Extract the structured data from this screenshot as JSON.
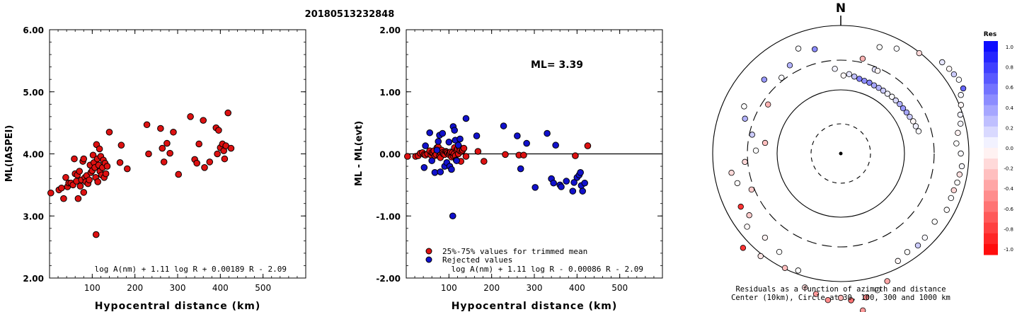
{
  "header": {
    "event_id": "20180513232848"
  },
  "chart_data": [
    {
      "type": "scatter",
      "xlabel": "Hypocentral distance (km)",
      "ylabel": "ML(IASPEI)",
      "xlim": [
        0,
        600
      ],
      "ylim": [
        2.0,
        6.0
      ],
      "x_ticks": [
        "100",
        "200",
        "300",
        "400",
        "500"
      ],
      "y_ticks": [
        "2.00",
        "3.00",
        "4.00",
        "5.00",
        "6.00"
      ],
      "formula": "log A(nm) + 1.11 log R + 0.00189 R - 2.09",
      "colors": {
        "point": "#dd1111"
      },
      "points": [
        [
          3,
          3.37
        ],
        [
          22,
          3.42
        ],
        [
          28,
          3.45
        ],
        [
          33,
          3.28
        ],
        [
          38,
          3.62
        ],
        [
          42,
          3.47
        ],
        [
          45,
          3.53
        ],
        [
          50,
          3.53
        ],
        [
          55,
          3.5
        ],
        [
          58,
          3.92
        ],
        [
          60,
          3.68
        ],
        [
          63,
          3.56
        ],
        [
          65,
          3.66
        ],
        [
          67,
          3.28
        ],
        [
          70,
          3.72
        ],
        [
          72,
          3.48
        ],
        [
          75,
          3.58
        ],
        [
          78,
          3.88
        ],
        [
          80,
          3.92
        ],
        [
          80,
          3.38
        ],
        [
          83,
          3.62
        ],
        [
          85,
          3.55
        ],
        [
          87,
          3.65
        ],
        [
          90,
          3.52
        ],
        [
          93,
          3.58
        ],
        [
          95,
          3.82
        ],
        [
          97,
          3.7
        ],
        [
          100,
          3.73
        ],
        [
          102,
          3.98
        ],
        [
          104,
          3.86
        ],
        [
          106,
          3.78
        ],
        [
          108,
          3.62
        ],
        [
          109,
          2.7
        ],
        [
          110,
          4.15
        ],
        [
          112,
          3.92
        ],
        [
          113,
          3.55
        ],
        [
          115,
          3.82
        ],
        [
          117,
          4.08
        ],
        [
          118,
          3.72
        ],
        [
          120,
          3.96
        ],
        [
          122,
          3.66
        ],
        [
          124,
          3.78
        ],
        [
          126,
          3.9
        ],
        [
          128,
          3.62
        ],
        [
          130,
          3.85
        ],
        [
          132,
          3.68
        ],
        [
          135,
          3.8
        ],
        [
          140,
          4.35
        ],
        [
          165,
          3.86
        ],
        [
          168,
          4.14
        ],
        [
          182,
          3.76
        ],
        [
          228,
          4.47
        ],
        [
          232,
          4.0
        ],
        [
          260,
          4.41
        ],
        [
          264,
          4.09
        ],
        [
          268,
          3.87
        ],
        [
          275,
          4.17
        ],
        [
          282,
          4.01
        ],
        [
          290,
          4.35
        ],
        [
          302,
          3.67
        ],
        [
          330,
          4.6
        ],
        [
          340,
          3.91
        ],
        [
          345,
          3.85
        ],
        [
          350,
          4.16
        ],
        [
          360,
          4.54
        ],
        [
          363,
          3.78
        ],
        [
          375,
          3.87
        ],
        [
          390,
          4.42
        ],
        [
          393,
          4.0
        ],
        [
          396,
          4.38
        ],
        [
          400,
          4.1
        ],
        [
          405,
          4.16
        ],
        [
          408,
          4.05
        ],
        [
          410,
          3.92
        ],
        [
          413,
          4.13
        ],
        [
          418,
          4.66
        ],
        [
          425,
          4.09
        ]
      ]
    },
    {
      "type": "scatter",
      "xlabel": "Hypocentral distance (km)",
      "ylabel": "ML - ML(evt)",
      "xlim": [
        0,
        600
      ],
      "ylim": [
        -2.0,
        2.0
      ],
      "x_ticks": [
        "100",
        "200",
        "300",
        "400",
        "500"
      ],
      "y_ticks": [
        "-2.00",
        "-1.00",
        "0.00",
        "1.00",
        "2.00"
      ],
      "annotation": "ML= 3.39",
      "formula": "log A(nm) + 1.11 log R - 0.00086 R - 2.09",
      "legend": {
        "placement": "bottom-left",
        "entries": [
          "25%-75% values for trimmed mean",
          "Rejected values"
        ]
      },
      "colors": {
        "trimmed": "#dd1111",
        "rejected": "#1111cc"
      },
      "series": [
        {
          "name": "25%-75% values for trimmed mean",
          "points": [
            [
              3,
              -0.04
            ],
            [
              22,
              -0.04
            ],
            [
              28,
              -0.03
            ],
            [
              33,
              0.01
            ],
            [
              38,
              0.02
            ],
            [
              42,
              -0.01
            ],
            [
              45,
              -0.02
            ],
            [
              50,
              0.0
            ],
            [
              55,
              0.05
            ],
            [
              58,
              -0.02
            ],
            [
              60,
              0.02
            ],
            [
              63,
              0.01
            ],
            [
              65,
              0.05
            ],
            [
              67,
              -0.03
            ],
            [
              70,
              -0.01
            ],
            [
              72,
              0.1
            ],
            [
              75,
              0.11
            ],
            [
              78,
              -0.03
            ],
            [
              80,
              0.02
            ],
            [
              80,
              -0.06
            ],
            [
              83,
              0.06
            ],
            [
              85,
              0.02
            ],
            [
              87,
              0.0
            ],
            [
              90,
              -0.01
            ],
            [
              93,
              0.04
            ],
            [
              95,
              0.03
            ],
            [
              97,
              0.01
            ],
            [
              100,
              -0.01
            ],
            [
              102,
              0.01
            ],
            [
              104,
              0.03
            ],
            [
              106,
              -0.05
            ],
            [
              108,
              0.02
            ],
            [
              110,
              -0.03
            ],
            [
              112,
              0.0
            ],
            [
              113,
              0.1
            ],
            [
              115,
              -0.03
            ],
            [
              117,
              -0.1
            ],
            [
              118,
              0.06
            ],
            [
              120,
              0.08
            ],
            [
              122,
              0.0
            ],
            [
              124,
              0.11
            ],
            [
              126,
              0.05
            ],
            [
              128,
              -0.12
            ],
            [
              130,
              0.04
            ],
            [
              132,
              0.06
            ],
            [
              135,
              0.09
            ],
            [
              140,
              -0.04
            ],
            [
              168,
              0.04
            ],
            [
              182,
              -0.12
            ],
            [
              232,
              -0.01
            ],
            [
              264,
              -0.02
            ],
            [
              275,
              -0.02
            ],
            [
              396,
              -0.03
            ],
            [
              425,
              0.13
            ]
          ]
        },
        {
          "name": "Rejected values",
          "points": [
            [
              42,
              -0.22
            ],
            [
              45,
              0.13
            ],
            [
              55,
              0.34
            ],
            [
              60,
              -0.11
            ],
            [
              67,
              -0.3
            ],
            [
              72,
              0.06
            ],
            [
              75,
              0.2
            ],
            [
              78,
              0.3
            ],
            [
              80,
              -0.29
            ],
            [
              85,
              0.33
            ],
            [
              90,
              -0.2
            ],
            [
              95,
              -0.14
            ],
            [
              100,
              0.19
            ],
            [
              102,
              -0.2
            ],
            [
              106,
              -0.25
            ],
            [
              109,
              -1.0
            ],
            [
              110,
              0.44
            ],
            [
              113,
              0.38
            ],
            [
              115,
              0.22
            ],
            [
              118,
              -0.11
            ],
            [
              122,
              0.14
            ],
            [
              126,
              0.24
            ],
            [
              140,
              0.57
            ],
            [
              165,
              0.29
            ],
            [
              228,
              0.45
            ],
            [
              260,
              0.29
            ],
            [
              268,
              -0.24
            ],
            [
              282,
              0.17
            ],
            [
              302,
              -0.54
            ],
            [
              330,
              0.33
            ],
            [
              340,
              -0.4
            ],
            [
              345,
              -0.47
            ],
            [
              350,
              0.14
            ],
            [
              360,
              -0.5
            ],
            [
              363,
              -0.53
            ],
            [
              375,
              -0.44
            ],
            [
              390,
              -0.6
            ],
            [
              393,
              -0.46
            ],
            [
              400,
              -0.38
            ],
            [
              405,
              -0.34
            ],
            [
              408,
              -0.3
            ],
            [
              410,
              -0.51
            ],
            [
              413,
              -0.6
            ],
            [
              418,
              -0.47
            ]
          ]
        }
      ]
    },
    {
      "type": "scatter",
      "polar": true,
      "north_label": "N",
      "caption_line1": "Residuals as a function of azimuth and distance",
      "caption_line2": "Center (10km), Circle at 30, 100, 300 and 1000 km",
      "rings_km": [
        30,
        100,
        300,
        1000
      ],
      "colorbar": {
        "title": "Res",
        "ticks": [
          "1.0",
          "0.8",
          "0.6",
          "0.4",
          "0.2",
          "0.0",
          "-0.2",
          "-0.4",
          "-0.6",
          "-0.8",
          "-1.0"
        ],
        "positive_color": "#0000ff",
        "negative_color": "#ff0000"
      },
      "points": [
        [
          2,
          138,
          -0.03
        ],
        [
          6,
          141,
          0.1
        ],
        [
          10,
          138,
          0.25
        ],
        [
          14,
          136,
          0.5
        ],
        [
          18,
          135,
          0.45
        ],
        [
          22,
          135,
          0.48
        ],
        [
          26,
          134,
          0.35
        ],
        [
          30,
          134,
          0.3
        ],
        [
          34,
          134,
          0.2
        ],
        [
          38,
          134,
          0.05
        ],
        [
          42,
          135,
          0.02
        ],
        [
          46,
          135,
          0.15
        ],
        [
          50,
          136,
          0.3
        ],
        [
          54,
          136,
          0.4
        ],
        [
          58,
          137,
          0.35
        ],
        [
          62,
          138,
          0.2
        ],
        [
          66,
          140,
          -0.03
        ],
        [
          70,
          141,
          0.06
        ],
        [
          74,
          143,
          0.02
        ],
        [
          22,
          160,
          0.12
        ],
        [
          24,
          160,
          -0.04
        ],
        [
          13,
          172,
          -0.3
        ],
        [
          20,
          200,
          0.0
        ],
        [
          28,
          210,
          0.02
        ],
        [
          38,
          225,
          -0.15
        ],
        [
          48,
          241,
          0.1
        ],
        [
          52,
          243,
          -0.03
        ],
        [
          55,
          244,
          0.2
        ],
        [
          58,
          246,
          0.02
        ],
        [
          62,
          245,
          0.6
        ],
        [
          64,
          236,
          0.03
        ],
        [
          68,
          229,
          -0.03
        ],
        [
          72,
          222,
          0.05
        ],
        [
          76,
          218,
          0.04
        ],
        [
          80,
          210,
          -0.05
        ],
        [
          85,
          205,
          0.0
        ],
        [
          90,
          212,
          0.02
        ],
        [
          96,
          215,
          0.03
        ],
        [
          100,
          213,
          -0.12
        ],
        [
          104,
          212,
          0.0
        ],
        [
          108,
          210,
          -0.16
        ],
        [
          112,
          210,
          0.02
        ],
        [
          118,
          212,
          -0.01
        ],
        [
          126,
          205,
          0.0
        ],
        [
          135,
          210,
          0.03
        ],
        [
          140,
          212,
          0.2
        ],
        [
          146,
          210,
          0.0
        ],
        [
          152,
          215,
          -0.03
        ],
        [
          160,
          240,
          -0.35
        ],
        [
          165,
          250,
          0.0
        ],
        [
          170,
          258,
          -0.45
        ],
        [
          172,
          280,
          -0.4
        ],
        [
          176,
          260,
          -0.55
        ],
        [
          180,
          255,
          -0.3
        ],
        [
          185,
          260,
          -0.45
        ],
        [
          190,
          252,
          -0.4
        ],
        [
          195,
          245,
          -0.15
        ],
        [
          200,
          220,
          0.0
        ],
        [
          206,
          225,
          -0.25
        ],
        [
          212,
          205,
          0.0
        ],
        [
          218,
          230,
          -0.1
        ],
        [
          222,
          200,
          -0.05
        ],
        [
          226,
          240,
          -0.8
        ],
        [
          232,
          210,
          -0.03
        ],
        [
          236,
          195,
          -0.2
        ],
        [
          242,
          200,
          -0.8
        ],
        [
          248,
          170,
          -0.2
        ],
        [
          254,
          190,
          -0.01
        ],
        [
          260,
          196,
          -0.15
        ],
        [
          265,
          170,
          -0.15
        ],
        [
          272,
          150,
          0.0
        ],
        [
          278,
          135,
          -0.25
        ],
        [
          282,
          160,
          0.2
        ],
        [
          290,
          180,
          0.3
        ],
        [
          296,
          190,
          0.0
        ],
        [
          304,
          155,
          -0.3
        ],
        [
          314,
          188,
          0.4
        ],
        [
          322,
          170,
          0.02
        ],
        [
          330,
          180,
          0.3
        ],
        [
          338,
          200,
          0.02
        ],
        [
          346,
          190,
          0.45
        ],
        [
          356,
          150,
          0.05
        ]
      ]
    }
  ]
}
